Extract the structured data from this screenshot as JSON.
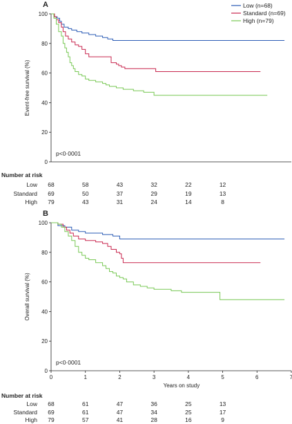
{
  "chart_data": [
    {
      "type": "line",
      "step": true,
      "panel_label": "A",
      "ylabel": "Event-free survival (%)",
      "xlabel": "",
      "ylim": [
        0,
        100
      ],
      "xlim": [
        0,
        7
      ],
      "yticks": [
        0,
        20,
        40,
        60,
        80,
        100
      ],
      "xticks": [],
      "grid": false,
      "legend_position": "top-right",
      "annotation": "p<0·0001",
      "colors": {
        "Low": "#2a5bb5",
        "Standard": "#c8264e",
        "High": "#78c854"
      },
      "series": [
        {
          "name": "Low (n=68)",
          "key": "Low",
          "points": [
            [
              0,
              100
            ],
            [
              0.1,
              98
            ],
            [
              0.18,
              97
            ],
            [
              0.25,
              95
            ],
            [
              0.3,
              93
            ],
            [
              0.38,
              91
            ],
            [
              0.5,
              90
            ],
            [
              0.6,
              89
            ],
            [
              0.75,
              88
            ],
            [
              0.9,
              87
            ],
            [
              1.1,
              86
            ],
            [
              1.3,
              85
            ],
            [
              1.5,
              84
            ],
            [
              1.65,
              83
            ],
            [
              1.8,
              82
            ],
            [
              2.5,
              82
            ],
            [
              3.5,
              82
            ],
            [
              4.5,
              82
            ],
            [
              5.5,
              82
            ],
            [
              6.8,
              82
            ]
          ]
        },
        {
          "name": "Standard (n=69)",
          "key": "Standard",
          "points": [
            [
              0,
              100
            ],
            [
              0.1,
              98
            ],
            [
              0.15,
              96
            ],
            [
              0.22,
              94
            ],
            [
              0.3,
              91
            ],
            [
              0.35,
              88
            ],
            [
              0.42,
              85
            ],
            [
              0.5,
              83
            ],
            [
              0.6,
              81
            ],
            [
              0.7,
              79
            ],
            [
              0.8,
              78
            ],
            [
              0.9,
              76
            ],
            [
              1.0,
              73
            ],
            [
              1.1,
              71
            ],
            [
              1.7,
              71
            ],
            [
              1.75,
              67
            ],
            [
              1.9,
              66
            ],
            [
              1.97,
              65
            ],
            [
              2.05,
              64
            ],
            [
              2.15,
              63
            ],
            [
              3.0,
              63
            ],
            [
              3.05,
              61
            ],
            [
              4.0,
              61
            ],
            [
              6.1,
              61
            ]
          ]
        },
        {
          "name": "High (n=79)",
          "key": "High",
          "points": [
            [
              0,
              100
            ],
            [
              0.08,
              97
            ],
            [
              0.15,
              93
            ],
            [
              0.22,
              88
            ],
            [
              0.3,
              85
            ],
            [
              0.35,
              80
            ],
            [
              0.4,
              77
            ],
            [
              0.45,
              74
            ],
            [
              0.5,
              71
            ],
            [
              0.55,
              67
            ],
            [
              0.6,
              65
            ],
            [
              0.65,
              63
            ],
            [
              0.7,
              61
            ],
            [
              0.8,
              59
            ],
            [
              0.9,
              58
            ],
            [
              1.0,
              56
            ],
            [
              1.1,
              55
            ],
            [
              1.3,
              54
            ],
            [
              1.5,
              53
            ],
            [
              1.6,
              52
            ],
            [
              1.7,
              51
            ],
            [
              1.9,
              50
            ],
            [
              2.1,
              49
            ],
            [
              2.4,
              48
            ],
            [
              2.7,
              47
            ],
            [
              3.0,
              45
            ],
            [
              3.5,
              45
            ],
            [
              4.5,
              45
            ],
            [
              5.5,
              45
            ],
            [
              6.3,
              45
            ]
          ]
        }
      ],
      "risk_table": {
        "title": "Number at risk",
        "groups": [
          "Low",
          "Standard",
          "High"
        ],
        "times": [
          0,
          1,
          2,
          3,
          4,
          5
        ],
        "counts": [
          [
            68,
            58,
            43,
            32,
            22,
            12
          ],
          [
            69,
            50,
            37,
            29,
            19,
            13
          ],
          [
            79,
            43,
            31,
            24,
            14,
            8
          ]
        ]
      }
    },
    {
      "type": "line",
      "step": true,
      "panel_label": "B",
      "ylabel": "Overall survival (%)",
      "xlabel": "Years on study",
      "ylim": [
        0,
        100
      ],
      "xlim": [
        0,
        7
      ],
      "yticks": [
        0,
        20,
        40,
        60,
        80,
        100
      ],
      "xticks": [
        0,
        1,
        2,
        3,
        4,
        5,
        6,
        7
      ],
      "grid": false,
      "annotation": "p<0·0001",
      "colors": {
        "Low": "#2a5bb5",
        "Standard": "#c8264e",
        "High": "#78c854"
      },
      "series": [
        {
          "key": "Low",
          "points": [
            [
              0,
              100
            ],
            [
              0.2,
              98
            ],
            [
              0.4,
              97
            ],
            [
              0.6,
              95
            ],
            [
              0.8,
              94
            ],
            [
              1.0,
              93
            ],
            [
              1.5,
              92
            ],
            [
              1.8,
              91
            ],
            [
              2.0,
              89
            ],
            [
              3.0,
              89
            ],
            [
              4.0,
              89
            ],
            [
              5.0,
              89
            ],
            [
              6.0,
              89
            ],
            [
              6.8,
              89
            ]
          ]
        },
        {
          "key": "Standard",
          "points": [
            [
              0,
              100
            ],
            [
              0.2,
              99
            ],
            [
              0.35,
              97
            ],
            [
              0.45,
              95
            ],
            [
              0.55,
              93
            ],
            [
              0.65,
              91
            ],
            [
              0.8,
              89
            ],
            [
              1.0,
              88
            ],
            [
              1.3,
              87
            ],
            [
              1.5,
              86
            ],
            [
              1.65,
              84
            ],
            [
              1.75,
              82
            ],
            [
              1.9,
              80
            ],
            [
              2.0,
              79
            ],
            [
              2.05,
              76
            ],
            [
              2.1,
              73
            ],
            [
              3.0,
              73
            ],
            [
              4.0,
              73
            ],
            [
              5.0,
              73
            ],
            [
              6.1,
              73
            ]
          ]
        },
        {
          "key": "High",
          "points": [
            [
              0,
              100
            ],
            [
              0.2,
              99
            ],
            [
              0.3,
              97
            ],
            [
              0.4,
              94
            ],
            [
              0.5,
              91
            ],
            [
              0.6,
              88
            ],
            [
              0.7,
              84
            ],
            [
              0.8,
              80
            ],
            [
              0.9,
              78
            ],
            [
              1.0,
              76
            ],
            [
              1.1,
              75
            ],
            [
              1.3,
              73
            ],
            [
              1.5,
              71
            ],
            [
              1.6,
              69
            ],
            [
              1.7,
              67
            ],
            [
              1.8,
              66
            ],
            [
              1.9,
              64
            ],
            [
              2.0,
              63
            ],
            [
              2.1,
              62
            ],
            [
              2.2,
              60
            ],
            [
              2.4,
              58
            ],
            [
              2.6,
              57
            ],
            [
              2.8,
              56
            ],
            [
              3.0,
              55
            ],
            [
              3.5,
              54
            ],
            [
              3.8,
              53
            ],
            [
              4.9,
              53
            ],
            [
              4.92,
              48
            ],
            [
              5.5,
              48
            ],
            [
              6.8,
              48
            ]
          ]
        }
      ],
      "risk_table": {
        "title": "Number at risk",
        "groups": [
          "Low",
          "Standard",
          "High"
        ],
        "times": [
          0,
          1,
          2,
          3,
          4,
          5
        ],
        "counts": [
          [
            68,
            61,
            47,
            36,
            25,
            13
          ],
          [
            69,
            61,
            47,
            34,
            25,
            17
          ],
          [
            79,
            57,
            41,
            28,
            16,
            9
          ]
        ]
      }
    }
  ]
}
